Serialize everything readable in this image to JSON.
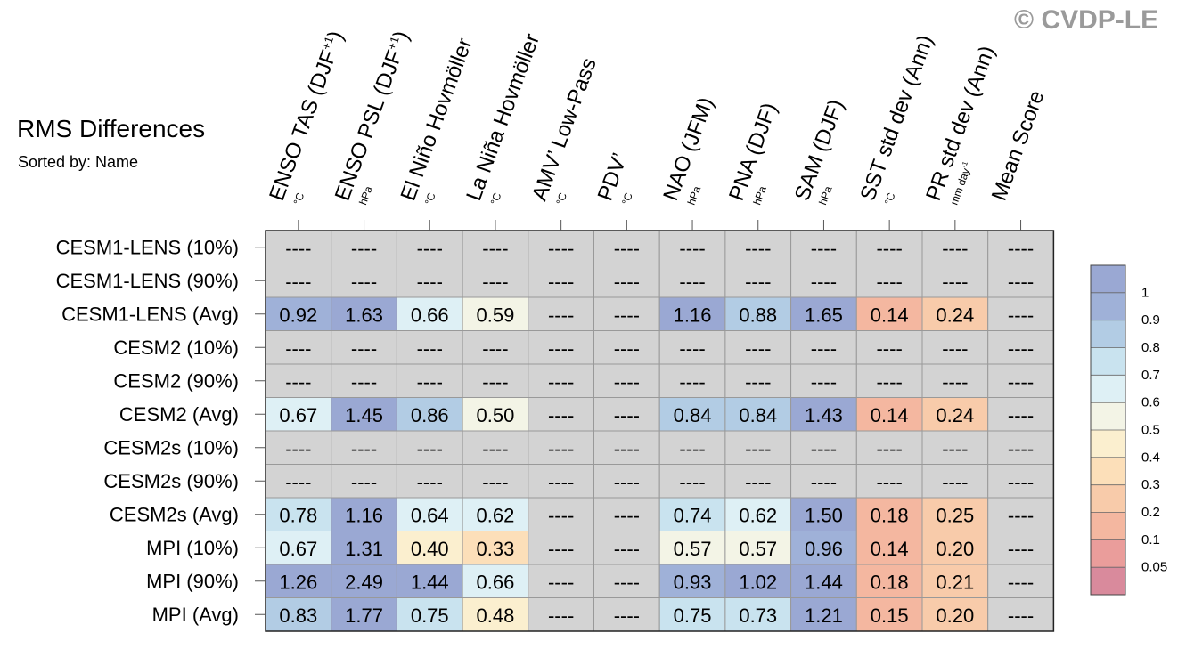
{
  "watermark": "© CVDP-LE",
  "header": {
    "title": "RMS Differences",
    "subtitle": "Sorted by: Name"
  },
  "chart_data": {
    "type": "table",
    "columns": [
      {
        "label": "ENSO TAS (DJF",
        "sup": "+1",
        "tail": ")",
        "unit": "°C",
        "unit_sup": ""
      },
      {
        "label": "ENSO PSL (DJF",
        "sup": "+1",
        "tail": ")",
        "unit": "hPa",
        "unit_sup": ""
      },
      {
        "label": "El Niño Hovmöller",
        "sup": "",
        "tail": "",
        "unit": "°C",
        "unit_sup": ""
      },
      {
        "label": "La Niña Hovmöller",
        "sup": "",
        "tail": "",
        "unit": "°C",
        "unit_sup": ""
      },
      {
        "label": "AMV’ Low-Pass",
        "sup": "",
        "tail": "",
        "unit": "°C",
        "unit_sup": ""
      },
      {
        "label": "PDV’",
        "sup": "",
        "tail": "",
        "unit": "°C",
        "unit_sup": ""
      },
      {
        "label": "NAO (JFM)",
        "sup": "",
        "tail": "",
        "unit": "hPa",
        "unit_sup": ""
      },
      {
        "label": "PNA (DJF)",
        "sup": "",
        "tail": "",
        "unit": "hPa",
        "unit_sup": ""
      },
      {
        "label": "SAM (DJF)",
        "sup": "",
        "tail": "",
        "unit": "hPa",
        "unit_sup": ""
      },
      {
        "label": "SST std dev (Ann)",
        "sup": "",
        "tail": "",
        "unit": "°C",
        "unit_sup": ""
      },
      {
        "label": "PR std dev (Ann)",
        "sup": "",
        "tail": "",
        "unit": "mm day",
        "unit_sup": "-1"
      },
      {
        "label": "Mean Score",
        "sup": "",
        "tail": "",
        "unit": "",
        "unit_sup": ""
      }
    ],
    "rows": [
      {
        "name": "CESM1-LENS (10%)",
        "values": [
          null,
          null,
          null,
          null,
          null,
          null,
          null,
          null,
          null,
          null,
          null,
          null
        ]
      },
      {
        "name": "CESM1-LENS (90%)",
        "values": [
          null,
          null,
          null,
          null,
          null,
          null,
          null,
          null,
          null,
          null,
          null,
          null
        ]
      },
      {
        "name": "CESM1-LENS (Avg)",
        "values": [
          0.92,
          1.63,
          0.66,
          0.59,
          null,
          null,
          1.16,
          0.88,
          1.65,
          0.14,
          0.24,
          null
        ]
      },
      {
        "name": "CESM2 (10%)",
        "values": [
          null,
          null,
          null,
          null,
          null,
          null,
          null,
          null,
          null,
          null,
          null,
          null
        ]
      },
      {
        "name": "CESM2 (90%)",
        "values": [
          null,
          null,
          null,
          null,
          null,
          null,
          null,
          null,
          null,
          null,
          null,
          null
        ]
      },
      {
        "name": "CESM2 (Avg)",
        "values": [
          0.67,
          1.45,
          0.86,
          0.5,
          null,
          null,
          0.84,
          0.84,
          1.43,
          0.14,
          0.24,
          null
        ]
      },
      {
        "name": "CESM2s (10%)",
        "values": [
          null,
          null,
          null,
          null,
          null,
          null,
          null,
          null,
          null,
          null,
          null,
          null
        ]
      },
      {
        "name": "CESM2s (90%)",
        "values": [
          null,
          null,
          null,
          null,
          null,
          null,
          null,
          null,
          null,
          null,
          null,
          null
        ]
      },
      {
        "name": "CESM2s (Avg)",
        "values": [
          0.78,
          1.16,
          0.64,
          0.62,
          null,
          null,
          0.74,
          0.62,
          1.5,
          0.18,
          0.25,
          null
        ]
      },
      {
        "name": "MPI (10%)",
        "values": [
          0.67,
          1.31,
          0.4,
          0.33,
          null,
          null,
          0.57,
          0.57,
          0.96,
          0.14,
          0.2,
          null
        ]
      },
      {
        "name": "MPI (90%)",
        "values": [
          1.26,
          2.49,
          1.44,
          0.66,
          null,
          null,
          0.93,
          1.02,
          1.44,
          0.18,
          0.21,
          null
        ]
      },
      {
        "name": "MPI (Avg)",
        "values": [
          0.83,
          1.77,
          0.75,
          0.48,
          null,
          null,
          0.75,
          0.73,
          1.21,
          0.15,
          0.2,
          null
        ]
      }
    ],
    "missing_text": "----",
    "missing_color": "#d3d3d3",
    "colorbar": {
      "levels": [
        "1",
        "0.9",
        "0.8",
        "0.7",
        "0.6",
        "0.5",
        "0.4",
        "0.3",
        "0.2",
        "0.1",
        "0.05"
      ],
      "thresholds": [
        0.05,
        0.1,
        0.2,
        0.3,
        0.4,
        0.5,
        0.6,
        0.7,
        0.8,
        0.9,
        1
      ],
      "colors": [
        "#d98a9c",
        "#ea9d9b",
        "#f4b7a0",
        "#f8cbaa",
        "#fcdfb9",
        "#fbefcf",
        "#f3f4e6",
        "#def0f5",
        "#c9e3ef",
        "#b2cce4",
        "#9fb1d8",
        "#9aa8d3"
      ]
    }
  }
}
